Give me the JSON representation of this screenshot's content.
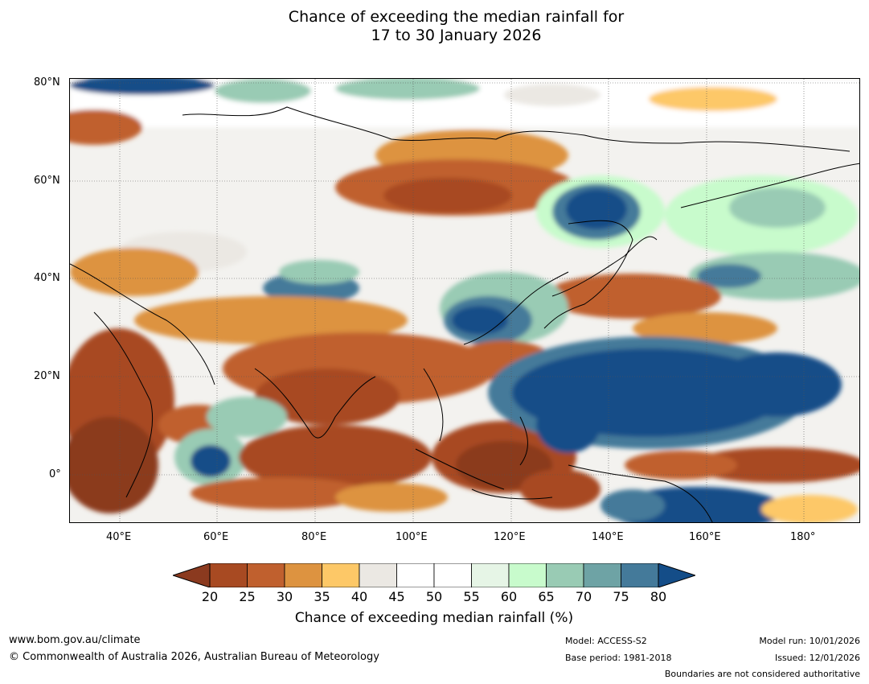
{
  "title": {
    "line1": "Chance of exceeding the median rainfall for",
    "line2": "17 to 30 January 2026"
  },
  "map": {
    "lat_labels": [
      "80°N",
      "60°N",
      "40°N",
      "20°N",
      "0°"
    ],
    "lon_labels": [
      "40°E",
      "60°E",
      "80°E",
      "100°E",
      "120°E",
      "140°E",
      "160°E",
      "180°"
    ],
    "regions": [
      {
        "name": "central-siberia-dry",
        "category": "25-35"
      },
      {
        "name": "manchuria-wet",
        "category": "75-80"
      },
      {
        "name": "western-pacific-wet",
        "category": "80+"
      },
      {
        "name": "indian-subcontinent-dry",
        "category": "20-30"
      },
      {
        "name": "maritime-continent-dry",
        "category": "20-25"
      },
      {
        "name": "east-africa-dry",
        "category": "20-25"
      },
      {
        "name": "southwest-pacific-wet",
        "category": "80+"
      },
      {
        "name": "central-pacific-dry",
        "category": "20-25"
      },
      {
        "name": "japan-dry",
        "category": "25-35"
      }
    ]
  },
  "colorbar": {
    "ticks": [
      "20",
      "25",
      "30",
      "35",
      "40",
      "45",
      "50",
      "55",
      "60",
      "65",
      "70",
      "75",
      "80"
    ],
    "colors": [
      "#8b3a1f",
      "#a84a22",
      "#c0602e",
      "#dd9340",
      "#fdc867",
      "#ebe8e3",
      "#ffffff",
      "#ffffff",
      "#e6f5e6",
      "#c8fbcc",
      "#99cbb4",
      "#6ea3a5",
      "#447a9a",
      "#144d88"
    ],
    "label": "Chance of exceeding median rainfall (%)"
  },
  "footer": {
    "url": "www.bom.gov.au/climate",
    "copyright": "© Commonwealth of Australia 2026, Australian Bureau of Meteorology",
    "model": "Model: ACCESS-S2",
    "base_period": "Base period: 1981-2018",
    "model_run": "Model run: 10/01/2026",
    "issued": "Issued: 12/01/2026",
    "disclaimer": "Boundaries are not considered authoritative"
  }
}
